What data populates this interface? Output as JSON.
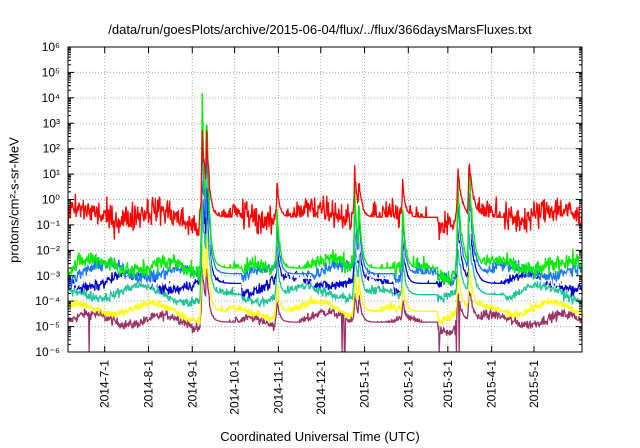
{
  "chart_data": {
    "type": "line",
    "title": "/data/run/goesPlots/archive/2015-06-04/flux/../flux/366daysMarsFluxes.txt",
    "xlabel": "Coordinated Universal Time (UTC)",
    "ylabel": "protons/cm²-s-sr-MeV",
    "yscale": "log",
    "ylim": [
      1e-06,
      1000000.0
    ],
    "xlim": [
      "2014-06-05",
      "2015-06-04"
    ],
    "grid": true,
    "y_ticks": [
      "10⁻⁶",
      "10⁻⁵",
      "10⁻⁴",
      "10⁻³",
      "10⁻²",
      "10⁻¹",
      "10⁰",
      "10¹",
      "10²",
      "10³",
      "10⁴",
      "10⁵",
      "10⁶"
    ],
    "x_ticks": [
      "2014-7-1",
      "2014-8-1",
      "2014-9-1",
      "2014-10-1",
      "2014-11-1",
      "2014-12-1",
      "2015-1-1",
      "2015-2-1",
      "2015-3-1",
      "2015-4-1",
      "2015-5-1"
    ],
    "x_tick_days": [
      26,
      57,
      88,
      118,
      149,
      179,
      210,
      241,
      269,
      300,
      330
    ],
    "events": [
      {
        "day": 95,
        "height": 6.2,
        "width": 3
      },
      {
        "day": 98,
        "height": 7.0,
        "width": 2
      },
      {
        "day": 148,
        "height": 2.4,
        "width": 2
      },
      {
        "day": 203,
        "height": 3.4,
        "width": 2
      },
      {
        "day": 206,
        "height": 3.0,
        "width": 2
      },
      {
        "day": 237,
        "height": 2.6,
        "width": 2
      },
      {
        "day": 276,
        "height": 3.4,
        "width": 3
      },
      {
        "day": 284,
        "height": 4.2,
        "width": 3
      }
    ],
    "series": [
      {
        "color": "#ff0000",
        "baseline": 0.2,
        "noise": 0.42,
        "response": 0.55
      },
      {
        "color": "#00ee00",
        "baseline": 0.002,
        "noise": 0.25,
        "response": 1.0
      },
      {
        "color": "#1c77ff",
        "baseline": 0.0012,
        "noise": 0.18,
        "response": 0.85
      },
      {
        "color": "#ffffff",
        "baseline": 0.0008,
        "noise": 0.15,
        "response": 0.8
      },
      {
        "color": "#0000cc",
        "baseline": 0.0005,
        "noise": 0.16,
        "response": 0.75
      },
      {
        "color": "#1fc39a",
        "baseline": 0.00018,
        "noise": 0.14,
        "response": 0.6
      },
      {
        "color": "#ffff00",
        "baseline": 4e-05,
        "noise": 0.12,
        "response": 0.45
      },
      {
        "color": "#993366",
        "baseline": 1.5e-05,
        "noise": 0.14,
        "response": 0.35
      }
    ],
    "dropouts": [
      {
        "day": 15,
        "depth": 7e-07
      },
      {
        "day": 194,
        "depth": 7e-07
      },
      {
        "day": 196,
        "depth": 7e-07
      },
      {
        "day": 263,
        "depth": 7e-07
      },
      {
        "day": 275,
        "depth": 7e-07
      },
      {
        "day": 277,
        "depth": 7e-07
      }
    ]
  }
}
